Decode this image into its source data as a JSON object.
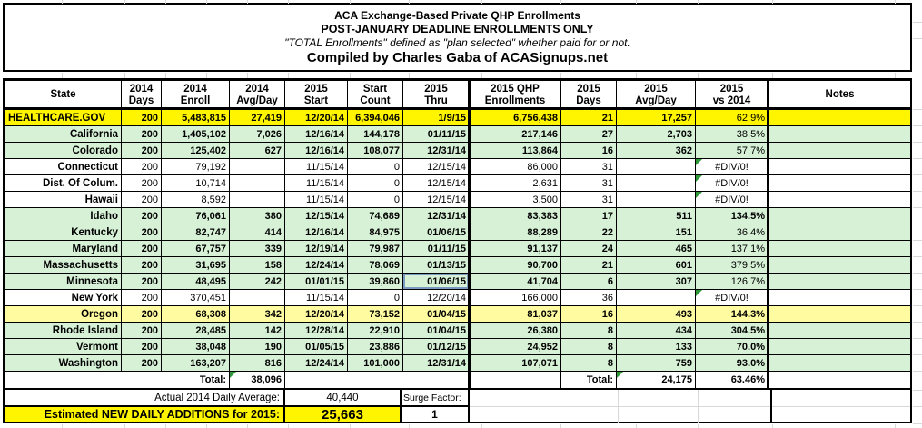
{
  "title": {
    "line1": "ACA Exchange-Based Private QHP Enrollments",
    "line2": "POST-JANUARY DEADLINE ENROLLMENTS ONLY",
    "line3": "\"TOTAL Enrollments\" defined as \"plan selected\" whether paid for or not.",
    "line4": "Compiled by Charles Gaba of ACASignups.net"
  },
  "table": {
    "headers": [
      {
        "key": "state",
        "line1": "State",
        "line2": ""
      },
      {
        "key": "days2014",
        "line1": "2014",
        "line2": "Days"
      },
      {
        "key": "enroll2014",
        "line1": "2014",
        "line2": "Enroll"
      },
      {
        "key": "avg2014",
        "line1": "2014",
        "line2": "Avg/Day"
      },
      {
        "key": "start2015",
        "line1": "2015",
        "line2": "Start"
      },
      {
        "key": "start_count",
        "line1": "Start",
        "line2": "Count"
      },
      {
        "key": "thru2015",
        "line1": "2015",
        "line2": "Thru"
      },
      {
        "key": "qhp2015",
        "line1": "2015 QHP",
        "line2": "Enrollments"
      },
      {
        "key": "days2015",
        "line1": "2015",
        "line2": "Days"
      },
      {
        "key": "avg2015",
        "line1": "2015",
        "line2": "Avg/Day"
      },
      {
        "key": "vs2014",
        "line1": "2015",
        "line2": "vs 2014"
      },
      {
        "key": "notes",
        "line1": "Notes",
        "line2": ""
      }
    ],
    "rows": [
      {
        "state": "HEALTHCARE.GOV",
        "bg": "yellow",
        "bold": true,
        "pct_bold": false,
        "error": false,
        "selected": false,
        "days2014": "200",
        "enroll2014": "5,483,815",
        "avg2014": "27,419",
        "start2015": "12/20/14",
        "start_count": "6,394,046",
        "thru2015": "1/9/15",
        "qhp2015": "6,756,438",
        "days2015": "21",
        "avg2015": "17,257",
        "vs2014": "62.9%",
        "notes": ""
      },
      {
        "state": "California",
        "bg": "green",
        "bold": true,
        "pct_bold": false,
        "error": false,
        "selected": false,
        "days2014": "200",
        "enroll2014": "1,405,102",
        "avg2014": "7,026",
        "start2015": "12/16/14",
        "start_count": "144,178",
        "thru2015": "01/11/15",
        "qhp2015": "217,146",
        "days2015": "27",
        "avg2015": "2,703",
        "vs2014": "38.5%",
        "notes": ""
      },
      {
        "state": "Colorado",
        "bg": "green",
        "bold": true,
        "pct_bold": false,
        "error": false,
        "selected": false,
        "days2014": "200",
        "enroll2014": "125,402",
        "avg2014": "627",
        "start2015": "12/16/14",
        "start_count": "108,077",
        "thru2015": "12/31/14",
        "qhp2015": "113,864",
        "days2015": "16",
        "avg2015": "362",
        "vs2014": "57.7%",
        "notes": ""
      },
      {
        "state": "Connecticut",
        "bg": "white",
        "bold": false,
        "pct_bold": false,
        "error": true,
        "selected": false,
        "days2014": "200",
        "enroll2014": "79,192",
        "avg2014": "",
        "start2015": "11/15/14",
        "start_count": "0",
        "thru2015": "12/15/14",
        "qhp2015": "86,000",
        "days2015": "31",
        "avg2015": "",
        "vs2014": "#DIV/0!",
        "notes": ""
      },
      {
        "state": "Dist. Of Colum.",
        "bg": "white",
        "bold": false,
        "pct_bold": false,
        "error": true,
        "selected": false,
        "days2014": "200",
        "enroll2014": "10,714",
        "avg2014": "",
        "start2015": "11/15/14",
        "start_count": "0",
        "thru2015": "12/15/14",
        "qhp2015": "2,631",
        "days2015": "31",
        "avg2015": "",
        "vs2014": "#DIV/0!",
        "notes": ""
      },
      {
        "state": "Hawaii",
        "bg": "white",
        "bold": false,
        "pct_bold": false,
        "error": true,
        "selected": false,
        "days2014": "200",
        "enroll2014": "8,592",
        "avg2014": "",
        "start2015": "11/15/14",
        "start_count": "0",
        "thru2015": "12/15/14",
        "qhp2015": "3,500",
        "days2015": "31",
        "avg2015": "",
        "vs2014": "#DIV/0!",
        "notes": ""
      },
      {
        "state": "Idaho",
        "bg": "green",
        "bold": true,
        "pct_bold": true,
        "error": false,
        "selected": false,
        "days2014": "200",
        "enroll2014": "76,061",
        "avg2014": "380",
        "start2015": "12/15/14",
        "start_count": "74,689",
        "thru2015": "12/31/14",
        "qhp2015": "83,383",
        "days2015": "17",
        "avg2015": "511",
        "vs2014": "134.5%",
        "notes": ""
      },
      {
        "state": "Kentucky",
        "bg": "green",
        "bold": true,
        "pct_bold": false,
        "error": false,
        "selected": false,
        "days2014": "200",
        "enroll2014": "82,747",
        "avg2014": "414",
        "start2015": "12/16/14",
        "start_count": "84,975",
        "thru2015": "01/06/15",
        "qhp2015": "88,289",
        "days2015": "22",
        "avg2015": "151",
        "vs2014": "36.4%",
        "notes": ""
      },
      {
        "state": "Maryland",
        "bg": "green",
        "bold": true,
        "pct_bold": false,
        "error": false,
        "selected": false,
        "days2014": "200",
        "enroll2014": "67,757",
        "avg2014": "339",
        "start2015": "12/19/14",
        "start_count": "79,987",
        "thru2015": "01/11/15",
        "qhp2015": "91,137",
        "days2015": "24",
        "avg2015": "465",
        "vs2014": "137.1%",
        "notes": ""
      },
      {
        "state": "Massachusetts",
        "bg": "green",
        "bold": true,
        "pct_bold": false,
        "error": false,
        "selected": false,
        "days2014": "200",
        "enroll2014": "31,695",
        "avg2014": "158",
        "start2015": "12/24/14",
        "start_count": "78,069",
        "thru2015": "01/13/15",
        "qhp2015": "90,700",
        "days2015": "21",
        "avg2015": "601",
        "vs2014": "379.5%",
        "notes": ""
      },
      {
        "state": "Minnesota",
        "bg": "green",
        "bold": true,
        "pct_bold": false,
        "error": false,
        "selected": true,
        "days2014": "200",
        "enroll2014": "48,495",
        "avg2014": "242",
        "start2015": "01/01/15",
        "start_count": "39,860",
        "thru2015": "01/06/15",
        "qhp2015": "41,704",
        "days2015": "6",
        "avg2015": "307",
        "vs2014": "126.7%",
        "notes": ""
      },
      {
        "state": "New York",
        "bg": "white",
        "bold": false,
        "pct_bold": false,
        "error": true,
        "selected": false,
        "days2014": "200",
        "enroll2014": "370,451",
        "avg2014": "",
        "start2015": "11/15/14",
        "start_count": "0",
        "thru2015": "12/20/14",
        "qhp2015": "166,000",
        "days2015": "36",
        "avg2015": "",
        "vs2014": "#DIV/0!",
        "notes": ""
      },
      {
        "state": "Oregon",
        "bg": "paleyellow",
        "bold": true,
        "pct_bold": true,
        "error": false,
        "selected": false,
        "days2014": "200",
        "enroll2014": "68,308",
        "avg2014": "342",
        "start2015": "12/20/14",
        "start_count": "73,152",
        "thru2015": "01/04/15",
        "qhp2015": "81,037",
        "days2015": "16",
        "avg2015": "493",
        "vs2014": "144.3%",
        "notes": ""
      },
      {
        "state": "Rhode Island",
        "bg": "green",
        "bold": true,
        "pct_bold": true,
        "error": false,
        "selected": false,
        "days2014": "200",
        "enroll2014": "28,485",
        "avg2014": "142",
        "start2015": "12/28/14",
        "start_count": "22,910",
        "thru2015": "01/04/15",
        "qhp2015": "26,380",
        "days2015": "8",
        "avg2015": "434",
        "vs2014": "304.5%",
        "notes": ""
      },
      {
        "state": "Vermont",
        "bg": "green",
        "bold": true,
        "pct_bold": true,
        "error": false,
        "selected": false,
        "days2014": "200",
        "enroll2014": "38,048",
        "avg2014": "190",
        "start2015": "01/05/15",
        "start_count": "23,886",
        "thru2015": "01/12/15",
        "qhp2015": "24,952",
        "days2015": "8",
        "avg2015": "133",
        "vs2014": "70.0%",
        "notes": ""
      },
      {
        "state": "Washington",
        "bg": "green",
        "bold": true,
        "pct_bold": true,
        "error": false,
        "selected": false,
        "days2014": "200",
        "enroll2014": "163,207",
        "avg2014": "816",
        "start2015": "12/24/14",
        "start_count": "101,000",
        "thru2015": "12/31/14",
        "qhp2015": "107,071",
        "days2015": "8",
        "avg2015": "759",
        "vs2014": "93.0%",
        "notes": ""
      }
    ],
    "total_row": {
      "label_left": "Total:",
      "total_2014_avg": "38,096",
      "label_right": "Total:",
      "total_2015_avg": "24,175",
      "total_vs_2014": "63.46%"
    }
  },
  "footer": {
    "actual_label": "Actual 2014 Daily Average:",
    "actual_value": "40,440",
    "surge_label": "Surge Factor:",
    "surge_value": "1",
    "estimated_label": "Estimated NEW DAILY ADDITIONS for 2015:",
    "estimated_value": "25,663"
  },
  "colors": {
    "highlight_yellow": "#FFF500",
    "pale_yellow": "#FFFBA0",
    "pale_green": "#D6F1D6",
    "white": "#FFFFFF",
    "error_triangle_green": "#2F9838",
    "grid_line_gray": "#D8D8D8",
    "selection_blue": "#7B9CC0",
    "border_black": "#000000"
  }
}
